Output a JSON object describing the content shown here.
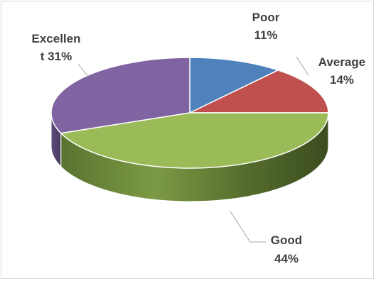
{
  "chart_data": {
    "type": "pie",
    "style": "3d",
    "title": "",
    "legend": "none",
    "slices": [
      {
        "label": "Poor",
        "value": 11,
        "pct_label": "11%",
        "color": "#4f81bd"
      },
      {
        "label": "Average",
        "value": 14,
        "pct_label": "14%",
        "color": "#c0504d"
      },
      {
        "label": "Good",
        "value": 44,
        "pct_label": "44%",
        "color": "#9bbb59"
      },
      {
        "label": "Excellen",
        "label_cont": "t 31%",
        "value": 31,
        "pct_label": "31%",
        "color": "#8064a2"
      }
    ]
  }
}
